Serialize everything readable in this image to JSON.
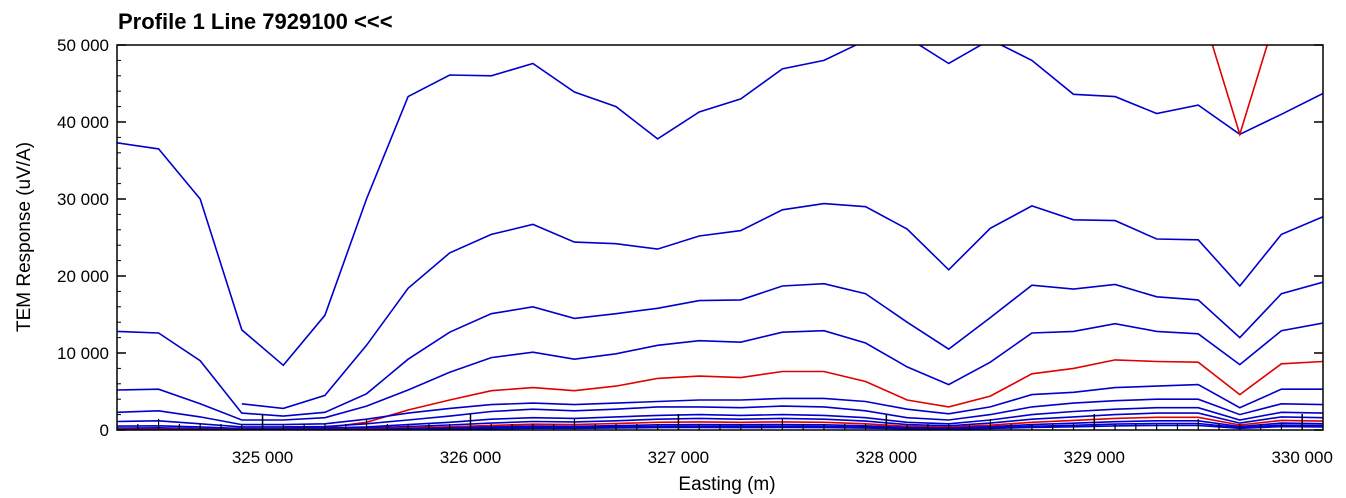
{
  "chart_data": {
    "type": "line",
    "title": "Profile 1   Line 7929100 <<<",
    "xlabel": "Easting (m)",
    "ylabel": "TEM Response (uV/A)",
    "xlim": [
      324300,
      330100
    ],
    "ylim": [
      0,
      50000
    ],
    "x_ticks": [
      325000,
      326000,
      327000,
      328000,
      329000,
      330000
    ],
    "x_tick_labels": [
      "325 000",
      "326 000",
      "327 000",
      "328 000",
      "329 000",
      "330 000"
    ],
    "y_ticks": [
      0,
      10000,
      20000,
      30000,
      40000,
      50000
    ],
    "y_tick_labels": [
      "0",
      "10 000",
      "20 000",
      "30 000",
      "40 000",
      "50 000"
    ],
    "colors": {
      "blue": "#0000cc",
      "red": "#e00000",
      "axis": "#000000"
    },
    "x": [
      324300,
      324500,
      324700,
      324900,
      325100,
      325300,
      325500,
      325700,
      325900,
      326100,
      326300,
      326500,
      326700,
      326900,
      327100,
      327300,
      327500,
      327700,
      327900,
      328100,
      328300,
      328500,
      328700,
      328900,
      329100,
      329300,
      329500,
      329700,
      329900,
      330100
    ],
    "series": [
      {
        "color": "blue",
        "values": [
          37300,
          36500,
          30000,
          13000,
          8400,
          14900,
          30000,
          43300,
          46100,
          46000,
          47600,
          43900,
          42000,
          37800,
          41300,
          43000,
          46900,
          48000,
          50600,
          51000,
          47600,
          50700,
          48000,
          43600,
          43300,
          41100,
          42200,
          38400,
          41000,
          43700
        ]
      },
      {
        "color": "red",
        "values": [
          null,
          null,
          null,
          null,
          null,
          null,
          null,
          null,
          null,
          null,
          null,
          null,
          null,
          null,
          null,
          null,
          null,
          null,
          null,
          null,
          null,
          null,
          null,
          null,
          null,
          null,
          56000,
          38400,
          56000,
          null
        ]
      },
      {
        "color": "blue",
        "values": [
          null,
          null,
          null,
          3400,
          2800,
          4500,
          11000,
          18400,
          23000,
          25400,
          26700,
          24400,
          24200,
          23500,
          25200,
          25900,
          28600,
          29400,
          29000,
          26100,
          20800,
          26200,
          29100,
          27300,
          27200,
          24800,
          24700,
          18700,
          25400,
          27700
        ]
      },
      {
        "color": "blue",
        "values": [
          12800,
          12600,
          9000,
          2200,
          1800,
          2300,
          4700,
          9200,
          12700,
          15100,
          16000,
          14500,
          15100,
          15800,
          16800,
          16900,
          18700,
          19000,
          17700,
          14000,
          10500,
          14600,
          18800,
          18300,
          18900,
          17300,
          16900,
          12000,
          17700,
          19200
        ]
      },
      {
        "color": "blue",
        "values": [
          5200,
          5300,
          3400,
          1300,
          1300,
          1600,
          3100,
          5200,
          7500,
          9400,
          10100,
          9200,
          9900,
          11000,
          11600,
          11400,
          12700,
          12900,
          11300,
          8200,
          5900,
          8800,
          12600,
          12800,
          13800,
          12800,
          12500,
          8500,
          12900,
          13900
        ]
      },
      {
        "color": "red",
        "values": [
          null,
          null,
          null,
          null,
          400,
          300,
          1000,
          2600,
          3900,
          5100,
          5500,
          5100,
          5700,
          6700,
          7000,
          6800,
          7600,
          7600,
          6300,
          3900,
          3000,
          4400,
          7300,
          8000,
          9100,
          8900,
          8800,
          4600,
          8600,
          8900
        ]
      },
      {
        "color": "blue",
        "values": [
          2300,
          2500,
          1700,
          700,
          700,
          800,
          1400,
          2200,
          2800,
          3300,
          3500,
          3300,
          3500,
          3700,
          3900,
          3900,
          4100,
          4100,
          3700,
          2700,
          2100,
          3000,
          4600,
          4900,
          5500,
          5700,
          5900,
          2900,
          5300,
          5300
        ]
      },
      {
        "color": "blue",
        "values": [
          1100,
          1200,
          800,
          400,
          400,
          450,
          800,
          1300,
          1800,
          2400,
          2700,
          2500,
          2700,
          3000,
          3000,
          2900,
          3100,
          3000,
          2500,
          1600,
          1300,
          2000,
          3000,
          3500,
          3800,
          4000,
          4000,
          2000,
          3400,
          3300
        ]
      },
      {
        "color": "blue",
        "values": [
          500,
          550,
          400,
          200,
          200,
          250,
          400,
          700,
          1000,
          1400,
          1600,
          1500,
          1700,
          1900,
          2000,
          1900,
          2000,
          1900,
          1600,
          1000,
          800,
          1300,
          2000,
          2400,
          2700,
          2900,
          2900,
          1300,
          2300,
          2200
        ]
      },
      {
        "color": "blue",
        "values": [
          250,
          280,
          200,
          100,
          100,
          130,
          250,
          450,
          650,
          900,
          1100,
          1050,
          1200,
          1400,
          1500,
          1400,
          1500,
          1400,
          1150,
          700,
          550,
          900,
          1400,
          1700,
          2000,
          2200,
          2200,
          900,
          1700,
          1600
        ]
      },
      {
        "color": "red",
        "values": [
          120,
          140,
          100,
          50,
          50,
          70,
          140,
          280,
          420,
          600,
          750,
          720,
          830,
          1000,
          1050,
          1000,
          1050,
          1000,
          800,
          480,
          380,
          620,
          1000,
          1250,
          1500,
          1650,
          1650,
          650,
          1250,
          1150
        ]
      },
      {
        "color": "blue",
        "values": [
          60,
          70,
          50,
          25,
          25,
          35,
          80,
          170,
          270,
          400,
          500,
          480,
          560,
          680,
          720,
          690,
          720,
          680,
          550,
          330,
          260,
          430,
          700,
          880,
          1080,
          1200,
          1200,
          460,
          900,
          820
        ]
      },
      {
        "color": "blue",
        "values": [
          30,
          35,
          25,
          12,
          12,
          18,
          45,
          100,
          170,
          260,
          330,
          320,
          380,
          460,
          490,
          470,
          490,
          460,
          370,
          220,
          170,
          290,
          480,
          610,
          760,
          850,
          850,
          320,
          630,
          570
        ]
      },
      {
        "color": "blue",
        "values": [
          15,
          18,
          12,
          6,
          6,
          9,
          25,
          60,
          110,
          170,
          220,
          215,
          255,
          310,
          330,
          315,
          330,
          310,
          250,
          150,
          115,
          195,
          330,
          420,
          530,
          600,
          600,
          220,
          440,
          400
        ]
      }
    ]
  }
}
